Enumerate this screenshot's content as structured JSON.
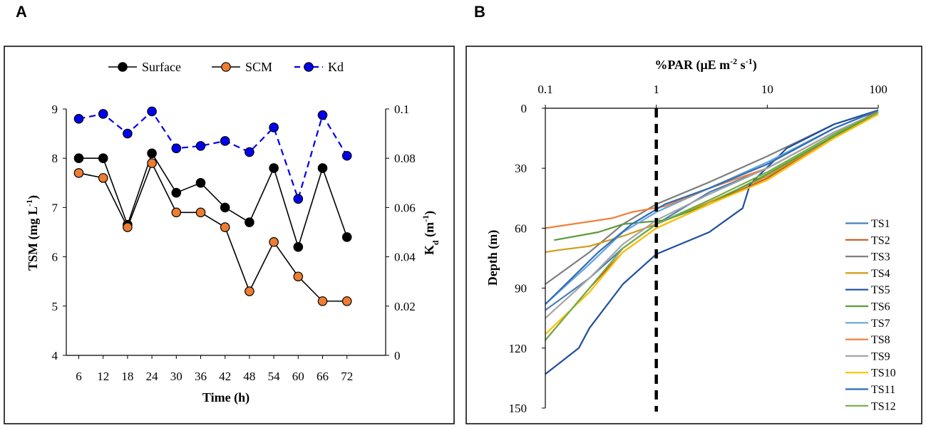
{
  "panels": {
    "a_label": "A",
    "b_label": "B"
  },
  "chart_data": [
    {
      "id": "A",
      "type": "line",
      "title": "",
      "xlabel": "Time (h)",
      "ylabel": "TSM (mg L-1)",
      "ylabel_parts": {
        "main": "TSM (mg L",
        "sup": "-1",
        "end": ")"
      },
      "y2label": "Kd (m-1)",
      "y2label_parts": {
        "k": "K",
        "sub": "d",
        "mid": " (m",
        "sup": "-1",
        "end": ")"
      },
      "categories": [
        "6",
        "12",
        "18",
        "24",
        "30",
        "36",
        "42",
        "48",
        "54",
        "60",
        "66",
        "72"
      ],
      "x": [
        6,
        12,
        18,
        24,
        30,
        36,
        42,
        48,
        54,
        60,
        66,
        72
      ],
      "ylim": [
        4,
        9
      ],
      "yticks": [
        "4",
        "5",
        "6",
        "7",
        "8",
        "9"
      ],
      "y2lim": [
        0,
        0.1
      ],
      "y2ticks": [
        "0",
        "0.02",
        "0.04",
        "0.06",
        "0.08",
        "0.1"
      ],
      "legend_position": "top",
      "series": [
        {
          "name": "Surface",
          "axis": "left",
          "color": "#000000",
          "marker": "#000000",
          "dash": false,
          "values": [
            8.0,
            8.0,
            6.65,
            8.1,
            7.3,
            7.5,
            7.0,
            6.7,
            7.8,
            6.2,
            7.8,
            6.4
          ]
        },
        {
          "name": "SCM",
          "axis": "left",
          "color": "#000000",
          "marker": "#ed7d31",
          "dash": false,
          "values": [
            7.7,
            7.6,
            6.6,
            7.9,
            6.9,
            6.9,
            6.6,
            5.3,
            6.3,
            5.6,
            5.1,
            5.1
          ]
        },
        {
          "name": "Kd",
          "axis": "right",
          "color": "#0000ee",
          "marker": "#0000ee",
          "dash": true,
          "values": [
            0.096,
            0.098,
            0.09,
            0.099,
            0.084,
            0.085,
            0.087,
            0.0825,
            0.0925,
            0.0635,
            0.0975,
            0.081
          ]
        }
      ]
    },
    {
      "id": "B",
      "type": "line",
      "title": "%PAR (μE m-2 s-1)",
      "title_parts": {
        "main": "%PAR (μE m",
        "sup1": "-2",
        "mid": " s",
        "sup2": "-1",
        "end": ")"
      },
      "xlabel": "%PAR (μE m-2 s-1)",
      "ylabel": "Depth (m)",
      "x_scale": "log",
      "xlim": [
        0.1,
        100
      ],
      "xticks": [
        "0.1",
        "1",
        "10",
        "100"
      ],
      "ylim": [
        0,
        150
      ],
      "yticks": [
        "0",
        "30",
        "60",
        "90",
        "120",
        "150"
      ],
      "reference_line": {
        "x": 1,
        "style": "dashed",
        "color": "#000000"
      },
      "legend_position": "right",
      "series": [
        {
          "name": "TS1",
          "color": "#4a7ebb",
          "x": [
            100,
            40,
            10,
            3,
            1,
            0.5,
            0.25,
            0.1
          ],
          "y": [
            2,
            12,
            30,
            42,
            58,
            70,
            85,
            101
          ]
        },
        {
          "name": "TS2",
          "color": "#c55a24",
          "x": [
            100,
            40,
            10,
            3,
            1,
            0.5,
            0.25,
            0.1
          ],
          "y": [
            1,
            14,
            35,
            48,
            60,
            72,
            90,
            116
          ]
        },
        {
          "name": "TS3",
          "color": "#7f7f7f",
          "x": [
            100,
            40,
            10,
            3,
            1,
            0.5,
            0.25,
            0.1
          ],
          "y": [
            1,
            8,
            24,
            37,
            48,
            58,
            72,
            88
          ]
        },
        {
          "name": "TS4",
          "color": "#d29a1a",
          "x": [
            100,
            40,
            10,
            3,
            1,
            0.5,
            0.25,
            0.13,
            0.1
          ],
          "y": [
            3,
            14,
            34,
            47,
            58,
            64,
            69,
            71,
            72
          ]
        },
        {
          "name": "TS5",
          "color": "#1f4e9c",
          "x": [
            100,
            40,
            15,
            7,
            6,
            3,
            1,
            0.5,
            0.25,
            0.2,
            0.1
          ],
          "y": [
            1,
            8,
            20,
            38,
            50,
            62,
            73,
            88,
            110,
            120,
            133
          ]
        },
        {
          "name": "TS6",
          "color": "#5a9b3a",
          "x": [
            100,
            40,
            10,
            3,
            1.2,
            0.5,
            0.3,
            0.12
          ],
          "y": [
            2,
            14,
            33,
            48,
            56,
            58,
            62,
            66
          ]
        },
        {
          "name": "TS7",
          "color": "#67a5d8",
          "x": [
            100,
            40,
            10,
            3,
            1,
            0.5,
            0.25,
            0.1
          ],
          "y": [
            1,
            10,
            27,
            40,
            52,
            62,
            78,
            98
          ]
        },
        {
          "name": "TS8",
          "color": "#f07f3c",
          "x": [
            100,
            40,
            10,
            3,
            1.2,
            0.6,
            0.4,
            0.1
          ],
          "y": [
            2,
            12,
            30,
            40,
            49,
            52,
            55,
            60
          ]
        },
        {
          "name": "TS9",
          "color": "#a5a5a5",
          "x": [
            100,
            40,
            10,
            3,
            1,
            0.5,
            0.25,
            0.1
          ],
          "y": [
            2,
            12,
            30,
            43,
            56,
            68,
            85,
            105
          ]
        },
        {
          "name": "TS10",
          "color": "#ffc000",
          "x": [
            100,
            40,
            10,
            3,
            1,
            0.5,
            0.25,
            0.1
          ],
          "y": [
            3,
            15,
            36,
            48,
            60,
            72,
            92,
            113
          ]
        },
        {
          "name": "TS11",
          "color": "#2e6cb7",
          "x": [
            100,
            40,
            10,
            3,
            1.2,
            0.6,
            0.3,
            0.1
          ],
          "y": [
            1,
            10,
            28,
            40,
            48,
            58,
            72,
            98
          ]
        },
        {
          "name": "TS12",
          "color": "#70ad47",
          "x": [
            100,
            40,
            10,
            3,
            1,
            0.5,
            0.25,
            0.1
          ],
          "y": [
            2,
            13,
            32,
            46,
            58,
            70,
            90,
            116
          ]
        }
      ]
    }
  ]
}
